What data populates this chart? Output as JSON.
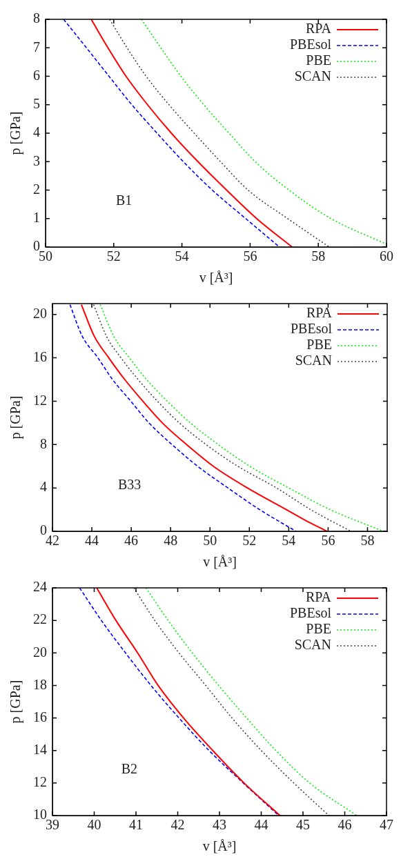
{
  "chart_data": [
    {
      "type": "line",
      "xlabel": "v [Å³]",
      "ylabel": "p [GPa]",
      "xlim": [
        50,
        60
      ],
      "xticks": [
        50,
        52,
        54,
        56,
        58,
        60
      ],
      "ylim": [
        0,
        8
      ],
      "yticks": [
        0,
        1,
        2,
        3,
        4,
        5,
        6,
        7,
        8
      ],
      "legend": "top right",
      "annotations": [
        "B1"
      ],
      "series": [
        {
          "name": "RPA",
          "color": "#ff0000",
          "line_style": "solid",
          "x": [
            51.34,
            51.83,
            52.36,
            52.99,
            53.69,
            54.47,
            55.31,
            56.19,
            57.23
          ],
          "values": [
            8,
            7,
            6,
            5,
            4,
            3,
            2,
            1,
            0
          ]
        },
        {
          "name": "PBEsol",
          "color": "#0000ff",
          "line_style": "dashed",
          "x": [
            50.53,
            51.2,
            51.86,
            52.53,
            53.27,
            54.04,
            54.89,
            55.87,
            56.86
          ],
          "values": [
            8,
            7,
            6,
            5,
            4,
            3,
            2,
            1,
            0
          ]
        },
        {
          "name": "PBE",
          "color": "#00ee00",
          "line_style": "dotted",
          "x": [
            52.81,
            53.38,
            53.97,
            54.64,
            55.38,
            56.15,
            57.14,
            58.37,
            60
          ],
          "values": [
            8,
            7,
            6,
            5,
            4,
            3,
            2,
            1,
            0.1
          ]
        },
        {
          "name": "SCAN",
          "color": "#444444",
          "line_style": "dotted",
          "x": [
            51.88,
            52.39,
            52.95,
            53.62,
            54.36,
            55.13,
            55.94,
            57.1,
            58.32
          ],
          "values": [
            8,
            7,
            6,
            5,
            4,
            3,
            2,
            1,
            0
          ]
        }
      ]
    },
    {
      "type": "line",
      "xlabel": "v [Å³]",
      "ylabel": "p [GPa]",
      "xlim": [
        42,
        59
      ],
      "xticks": [
        42,
        44,
        46,
        48,
        50,
        52,
        54,
        56,
        58
      ],
      "ylim": [
        0,
        21
      ],
      "yticks": [
        0,
        4,
        8,
        12,
        16,
        20
      ],
      "legend": "top right",
      "annotations": [
        "B33"
      ],
      "series": [
        {
          "name": "RPA",
          "color": "#ff0000",
          "line_style": "solid",
          "x": [
            43.47,
            44.12,
            44.86,
            45.67,
            46.59,
            47.58,
            48.81,
            50.17,
            51.9,
            53.88,
            54.86,
            55.95
          ],
          "values": [
            20.9,
            18,
            16,
            14,
            12,
            10,
            8,
            6,
            4,
            2,
            1,
            0
          ]
        },
        {
          "name": "PBEsol",
          "color": "#0000ff",
          "line_style": "dashed",
          "x": [
            42.89,
            43.51,
            44.31,
            45.05,
            45.98,
            46.9,
            48.07,
            49.37,
            50.91,
            52.52,
            54.37
          ],
          "values": [
            20.9,
            18,
            16,
            14,
            12,
            10,
            8,
            6,
            4,
            2,
            0
          ]
        },
        {
          "name": "PBE",
          "color": "#00ee00",
          "line_style": "dotted",
          "x": [
            44.43,
            45.11,
            45.91,
            46.78,
            47.83,
            49.0,
            50.42,
            52.02,
            54.0,
            56.1,
            58.81
          ],
          "values": [
            20.9,
            18,
            16,
            14,
            12,
            10,
            8,
            6,
            4,
            2,
            0
          ]
        },
        {
          "name": "SCAN",
          "color": "#444444",
          "line_style": "dotted",
          "x": [
            44.09,
            44.74,
            45.48,
            46.35,
            47.33,
            48.44,
            49.8,
            51.41,
            53.38,
            55.11,
            57.15
          ],
          "values": [
            20.9,
            18,
            16,
            14,
            12,
            10,
            8,
            6,
            4,
            2,
            0
          ]
        }
      ]
    },
    {
      "type": "line",
      "xlabel": "v [Å³]",
      "ylabel": "p [GPa]",
      "xlim": [
        39,
        47
      ],
      "xticks": [
        39,
        40,
        41,
        42,
        43,
        44,
        45,
        46,
        47
      ],
      "ylim": [
        10,
        24
      ],
      "yticks": [
        10,
        12,
        14,
        16,
        18,
        20,
        22,
        24
      ],
      "legend": "top right",
      "annotations": [
        "B2"
      ],
      "series": [
        {
          "name": "RPA",
          "color": "#ff0000",
          "line_style": "solid",
          "x": [
            40.06,
            40.52,
            41.04,
            41.53,
            42.14,
            42.84,
            43.59,
            44.45
          ],
          "values": [
            24,
            22,
            20,
            18,
            16,
            14,
            12,
            10
          ]
        },
        {
          "name": "PBEsol",
          "color": "#0000ff",
          "line_style": "dashed",
          "x": [
            39.65,
            40.17,
            40.75,
            41.36,
            42.03,
            42.75,
            43.57,
            44.42
          ],
          "values": [
            24,
            22,
            20,
            18,
            16,
            14,
            12,
            10
          ]
        },
        {
          "name": "PBE",
          "color": "#00ee00",
          "line_style": "dotted",
          "x": [
            41.24,
            41.77,
            42.35,
            42.98,
            43.65,
            44.35,
            45.16,
            46.29
          ],
          "values": [
            24,
            22,
            20,
            18,
            16,
            14,
            12,
            10
          ]
        },
        {
          "name": "SCAN",
          "color": "#444444",
          "line_style": "dotted",
          "x": [
            40.95,
            41.45,
            42.03,
            42.67,
            43.3,
            44.0,
            44.78,
            45.62
          ],
          "values": [
            24,
            22,
            20,
            18,
            16,
            14,
            12,
            10
          ]
        }
      ]
    }
  ]
}
